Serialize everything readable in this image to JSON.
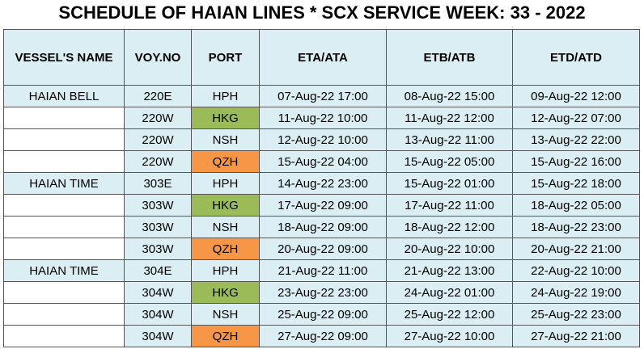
{
  "title": "SCHEDULE OF HAIAN LINES * SCX SERVICE WEEK: 33 - 2022",
  "table": {
    "header": [
      "VESSEL'S NAME",
      "VOY.NO",
      "PORT",
      "ETA/ATA",
      "ETB/ATB",
      "ETD/ATD"
    ],
    "rows": [
      {
        "vessel": "HAIAN BELL",
        "voy": "220E",
        "port": "HPH",
        "eta": "07-Aug-22 17:00",
        "etb": "08-Aug-22 15:00",
        "etd": "09-Aug-22 12:00"
      },
      {
        "voy": "220W",
        "port": "HKG",
        "port_color": "#9bbb59",
        "eta": "11-Aug-22 10:00",
        "etb": "11-Aug-22 12:00",
        "etd": "12-Aug-22 07:00"
      },
      {
        "voy": "220W",
        "port": "NSH",
        "eta": "12-Aug-22 10:00",
        "etb": "13-Aug-22 11:00",
        "etd": "13-Aug-22 22:00"
      },
      {
        "voy": "220W",
        "port": "QZH",
        "port_color": "#f79646",
        "eta": "15-Aug-22 04:00",
        "etb": "15-Aug-22 05:00",
        "etd": "15-Aug-22 16:00"
      },
      {
        "vessel": "HAIAN TIME",
        "voy": "303E",
        "port": "HPH",
        "eta": "14-Aug-22 23:00",
        "etb": "15-Aug-22 01:00",
        "etd": "15-Aug-22 18:00"
      },
      {
        "voy": "303W",
        "port": "HKG",
        "port_color": "#9bbb59",
        "eta": "17-Aug-22 09:00",
        "etb": "17-Aug-22 11:00",
        "etd": "18-Aug-22 05:00"
      },
      {
        "voy": "303W",
        "port": "NSH",
        "eta": "18-Aug-22 09:00",
        "etb": "18-Aug-22 12:00",
        "etd": "18-Aug-22 23:00"
      },
      {
        "voy": "303W",
        "port": "QZH",
        "port_color": "#f79646",
        "eta": "20-Aug-22 09:00",
        "etb": "20-Aug-22 10:00",
        "etd": "20-Aug-22 21:00"
      },
      {
        "vessel": "HAIAN TIME",
        "voy": "304E",
        "port": "HPH",
        "eta": "21-Aug-22 11:00",
        "etb": "21-Aug-22 13:00",
        "etd": "22-Aug-22 10:00"
      },
      {
        "voy": "304W",
        "port": "HKG",
        "port_color": "#9bbb59",
        "eta": "23-Aug-22 23:00",
        "etb": "24-Aug-22 01:00",
        "etd": "24-Aug-22 19:00"
      },
      {
        "voy": "304W",
        "port": "NSH",
        "eta": "25-Aug-22 09:00",
        "etb": "25-Aug-22 12:00",
        "etd": "25-Aug-22 23:00"
      },
      {
        "voy": "304W",
        "port": "QZH",
        "port_color": "#f79646",
        "eta": "27-Aug-22 09:00",
        "etb": "27-Aug-22 10:00",
        "etd": "27-Aug-22 21:00"
      }
    ]
  }
}
